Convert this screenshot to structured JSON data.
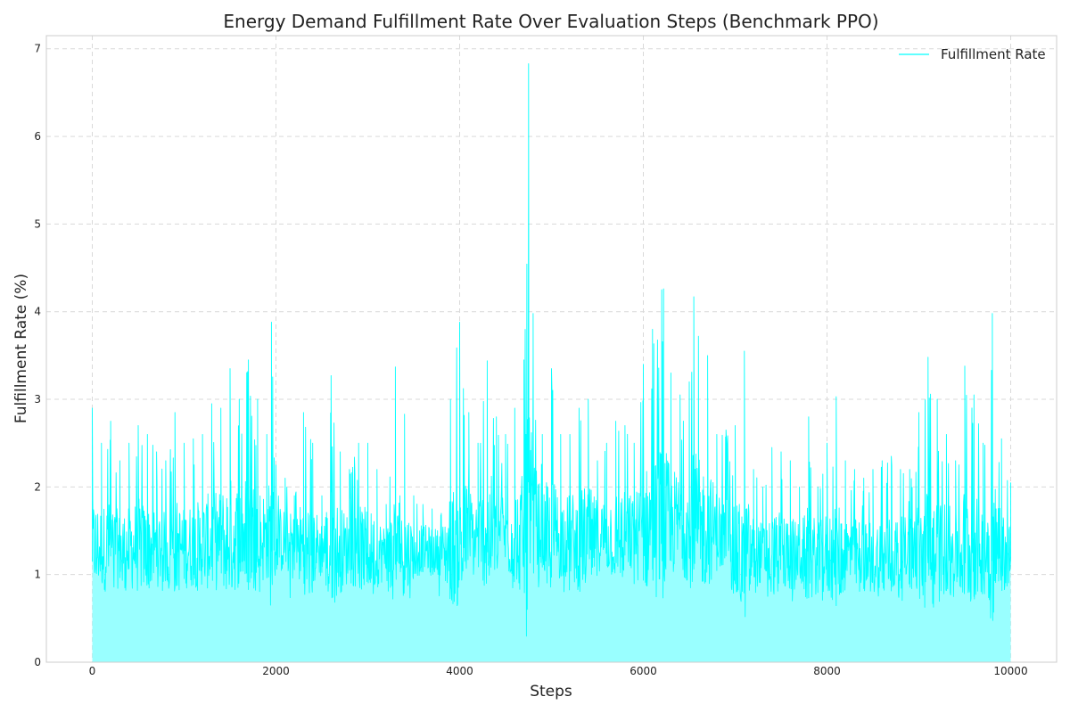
{
  "chart_data": {
    "type": "area",
    "title": "Energy Demand Fulfillment Rate Over Evaluation Steps (Benchmark PPO)",
    "xlabel": "Steps",
    "ylabel": "Fulfillment Rate (%)",
    "xlim": [
      -500,
      10500
    ],
    "ylim": [
      0,
      7.15
    ],
    "xticks": [
      0,
      2000,
      4000,
      6000,
      8000,
      10000
    ],
    "yticks": [
      0,
      1,
      2,
      3,
      4,
      5,
      6,
      7
    ],
    "grid": true,
    "legend": {
      "position": "top-right"
    },
    "series": [
      {
        "name": "Fulfillment Rate",
        "color": "#00ffff",
        "fill_color": "#99ffff",
        "x": [
          0,
          100,
          200,
          300,
          400,
          500,
          600,
          700,
          800,
          900,
          1000,
          1100,
          1200,
          1300,
          1400,
          1500,
          1600,
          1700,
          1800,
          1900,
          1950,
          2000,
          2100,
          2200,
          2300,
          2400,
          2500,
          2600,
          2700,
          2800,
          2900,
          3000,
          3100,
          3200,
          3300,
          3350,
          3400,
          3500,
          3600,
          3700,
          3800,
          3900,
          4000,
          4100,
          4200,
          4300,
          4400,
          4500,
          4600,
          4700,
          4750,
          4800,
          4900,
          5000,
          5100,
          5200,
          5300,
          5400,
          5500,
          5600,
          5700,
          5800,
          5900,
          6000,
          6100,
          6200,
          6220,
          6300,
          6400,
          6500,
          6550,
          6600,
          6700,
          6800,
          6900,
          7000,
          7100,
          7200,
          7300,
          7400,
          7500,
          7600,
          7700,
          7800,
          7900,
          8000,
          8100,
          8200,
          8300,
          8400,
          8500,
          8600,
          8700,
          8800,
          8900,
          9000,
          9100,
          9200,
          9300,
          9400,
          9500,
          9600,
          9700,
          9800,
          9900,
          10000
        ],
        "mean": [
          1.35,
          1.3,
          1.32,
          1.28,
          1.3,
          1.33,
          1.29,
          1.31,
          1.3,
          1.32,
          1.3,
          1.34,
          1.36,
          1.38,
          1.4,
          1.42,
          1.45,
          1.47,
          1.45,
          1.42,
          1.4,
          1.4,
          1.38,
          1.35,
          1.33,
          1.32,
          1.3,
          1.3,
          1.28,
          1.3,
          1.3,
          1.28,
          1.26,
          1.25,
          1.25,
          1.28,
          1.25,
          1.25,
          1.3,
          1.28,
          1.25,
          1.3,
          1.4,
          1.45,
          1.45,
          1.5,
          1.5,
          1.48,
          1.45,
          1.45,
          1.5,
          1.5,
          1.48,
          1.45,
          1.45,
          1.42,
          1.4,
          1.42,
          1.45,
          1.45,
          1.45,
          1.45,
          1.45,
          1.5,
          1.55,
          1.6,
          1.6,
          1.6,
          1.58,
          1.55,
          1.55,
          1.55,
          1.55,
          1.5,
          1.45,
          1.2,
          1.22,
          1.25,
          1.25,
          1.22,
          1.25,
          1.25,
          1.22,
          1.2,
          1.2,
          1.22,
          1.25,
          1.25,
          1.22,
          1.2,
          1.2,
          1.2,
          1.22,
          1.25,
          1.25,
          1.25,
          1.25,
          1.28,
          1.3,
          1.28,
          1.3,
          1.3,
          1.28,
          1.3,
          1.28,
          1.25
        ],
        "upper": [
          2.9,
          2.5,
          2.75,
          2.3,
          2.5,
          2.7,
          2.6,
          2.4,
          2.3,
          2.85,
          2.5,
          2.55,
          2.6,
          2.95,
          2.9,
          3.35,
          3.0,
          3.45,
          3.0,
          2.6,
          3.88,
          2.25,
          2.1,
          1.9,
          2.85,
          2.5,
          1.9,
          3.27,
          2.4,
          2.2,
          2.5,
          2.5,
          2.2,
          1.8,
          3.37,
          1.9,
          2.83,
          1.9,
          1.8,
          1.75,
          1.7,
          3.0,
          3.88,
          2.85,
          2.5,
          3.44,
          2.8,
          2.6,
          2.9,
          3.45,
          6.83,
          3.98,
          2.6,
          3.35,
          2.6,
          2.6,
          2.9,
          3.0,
          2.3,
          2.5,
          2.75,
          2.7,
          2.5,
          3.4,
          3.8,
          4.25,
          4.26,
          3.3,
          3.05,
          3.2,
          4.17,
          3.72,
          3.5,
          2.6,
          2.65,
          2.7,
          3.55,
          2.2,
          2.0,
          2.45,
          2.4,
          2.3,
          2.0,
          2.8,
          2.0,
          2.5,
          3.03,
          2.3,
          2.2,
          2.1,
          2.2,
          2.3,
          2.35,
          2.2,
          2.2,
          2.85,
          3.48,
          3.0,
          2.6,
          2.3,
          3.38,
          3.05,
          2.5,
          3.98,
          2.55,
          2.05
        ],
        "lower": [
          1.0,
          0.75,
          0.8,
          0.75,
          0.8,
          0.7,
          0.8,
          0.75,
          0.78,
          0.8,
          0.82,
          0.75,
          0.8,
          0.8,
          0.85,
          0.8,
          0.85,
          0.8,
          0.8,
          0.78,
          0.8,
          0.8,
          0.75,
          0.7,
          0.78,
          0.75,
          0.7,
          0.72,
          0.6,
          0.75,
          0.7,
          0.75,
          0.7,
          0.72,
          0.7,
          0.75,
          0.75,
          0.72,
          0.8,
          0.78,
          0.75,
          0.7,
          0.9,
          0.85,
          0.88,
          0.85,
          0.9,
          0.8,
          0.8,
          0.85,
          0.9,
          0.9,
          0.8,
          0.85,
          0.8,
          0.8,
          0.75,
          0.8,
          0.85,
          0.82,
          0.8,
          0.85,
          0.85,
          0.9,
          0.95,
          0.98,
          1.0,
          1.0,
          0.95,
          0.9,
          0.9,
          0.92,
          0.95,
          0.9,
          0.9,
          0.7,
          0.68,
          0.7,
          0.72,
          0.7,
          0.72,
          0.68,
          0.7,
          0.65,
          0.62,
          0.68,
          0.7,
          0.68,
          0.62,
          0.6,
          0.62,
          0.65,
          0.68,
          0.7,
          0.72,
          0.7,
          0.68,
          0.7,
          0.72,
          0.7,
          0.72,
          0.72,
          0.7,
          0.75,
          0.72,
          0.7
        ]
      }
    ]
  }
}
